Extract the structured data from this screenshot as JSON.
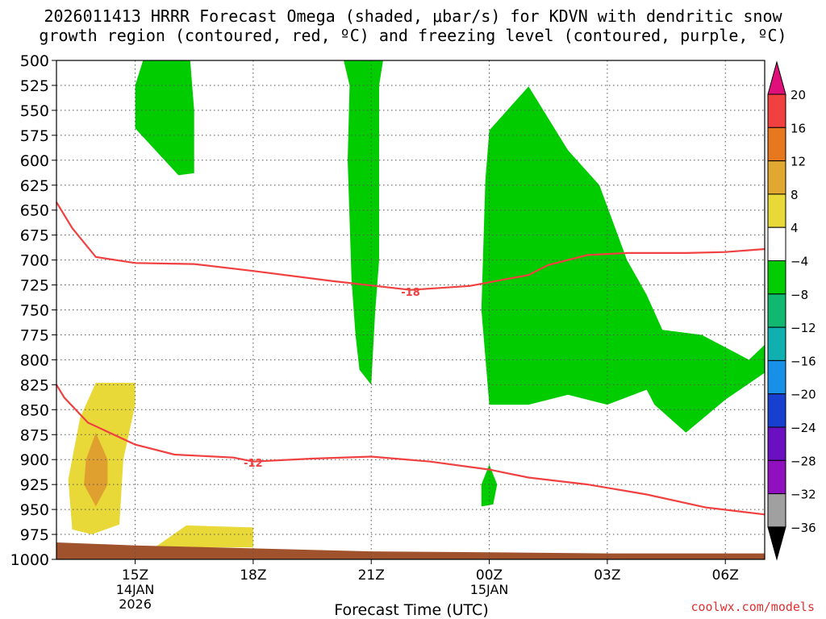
{
  "title_line1": "2026011413 HRRR Forecast Omega (shaded, μbar/s) for KDVN with dendritic snow",
  "title_line2": "growth region (contoured, red, ºC) and freezing level (contoured, purple, ºC)",
  "credit": "coolwx.com/models",
  "colors": {
    "green": "#00cc00",
    "yellow": "#e8d838",
    "orange": "#e0a030",
    "ground": "#a0522d",
    "contour_red": "#f04040"
  },
  "chart_data": {
    "type": "heatmap",
    "title": "2026011413 HRRR Forecast Omega (shaded, μbar/s) for KDVN with dendritic snow growth region (contoured, red, ºC) and freezing level (contoured, purple, ºC)",
    "xlabel": "Forecast Time (UTC)",
    "x_axis": {
      "range_hours": [
        13,
        31
      ],
      "ticks": [
        {
          "hour": 15,
          "label": "15Z",
          "sub1": "14JAN",
          "sub2": "2026"
        },
        {
          "hour": 18,
          "label": "18Z",
          "sub1": "",
          "sub2": ""
        },
        {
          "hour": 21,
          "label": "21Z",
          "sub1": "",
          "sub2": ""
        },
        {
          "hour": 24,
          "label": "00Z",
          "sub1": "15JAN",
          "sub2": ""
        },
        {
          "hour": 27,
          "label": "03Z",
          "sub1": "",
          "sub2": ""
        },
        {
          "hour": 30,
          "label": "06Z",
          "sub1": "",
          "sub2": ""
        }
      ]
    },
    "y_axis": {
      "unit": "hPa",
      "range": [
        500,
        1000
      ],
      "ticks": [
        500,
        525,
        550,
        575,
        600,
        625,
        650,
        675,
        700,
        725,
        750,
        775,
        800,
        825,
        850,
        875,
        900,
        925,
        950,
        975,
        1000
      ]
    },
    "grid": true,
    "colorbar": {
      "levels": [
        "20",
        "16",
        "12",
        "8",
        "4",
        "−4",
        "−8",
        "−12",
        "−16",
        "−20",
        "−24",
        "−28",
        "−32",
        "−36"
      ],
      "colors": [
        "#f04040",
        "#e87820",
        "#e0a830",
        "#e8d838",
        "#ffffff",
        "#00cc00",
        "#10b870",
        "#10b0b0",
        "#1890e8",
        "#1840d0",
        "#6a10c0",
        "#9010c0",
        "#a0a0a0"
      ],
      "top_arrow_color": "#e0107a",
      "bottom_arrow_color": "#000000"
    },
    "omega_regions": [
      {
        "level": "-8 to -4",
        "color": "#00cc00",
        "points": [
          [
            15.0,
            525
          ],
          [
            15.2,
            500
          ],
          [
            16.4,
            500
          ],
          [
            16.5,
            550
          ],
          [
            16.5,
            613
          ],
          [
            16.1,
            615
          ],
          [
            15.0,
            568
          ]
        ]
      },
      {
        "level": "-8 to -4",
        "color": "#00cc00",
        "points": [
          [
            20.3,
            500
          ],
          [
            21.3,
            500
          ],
          [
            21.2,
            525
          ],
          [
            21.2,
            560
          ],
          [
            21.2,
            700
          ],
          [
            21.1,
            752
          ],
          [
            21.0,
            825
          ],
          [
            20.7,
            810
          ],
          [
            20.6,
            775
          ],
          [
            20.5,
            720
          ],
          [
            20.4,
            600
          ],
          [
            20.45,
            525
          ]
        ]
      },
      {
        "level": "-8 to -4",
        "color": "#00cc00",
        "points": [
          [
            24.0,
            570
          ],
          [
            25.0,
            526
          ],
          [
            26.0,
            590
          ],
          [
            26.8,
            625
          ],
          [
            27.5,
            700
          ],
          [
            28.0,
            735
          ],
          [
            28.4,
            770
          ],
          [
            29.4,
            775
          ],
          [
            30.6,
            800
          ],
          [
            31.0,
            785
          ],
          [
            31.0,
            813
          ],
          [
            30.0,
            840
          ],
          [
            29.0,
            873
          ],
          [
            28.2,
            845
          ],
          [
            28.0,
            830
          ],
          [
            27.0,
            845
          ],
          [
            26.0,
            835
          ],
          [
            25.0,
            845
          ],
          [
            24.0,
            845
          ],
          [
            23.8,
            750
          ],
          [
            23.9,
            620
          ]
        ]
      },
      {
        "level": "-8 to -4",
        "color": "#00cc00",
        "points": [
          [
            23.8,
            925
          ],
          [
            24.0,
            905
          ],
          [
            24.2,
            925
          ],
          [
            24.1,
            945
          ],
          [
            23.8,
            947
          ]
        ]
      },
      {
        "level": "4 to 8",
        "color": "#e8d838",
        "points": [
          [
            14.0,
            823
          ],
          [
            15.0,
            823
          ],
          [
            15.0,
            845
          ],
          [
            14.7,
            900
          ],
          [
            14.6,
            965
          ],
          [
            13.9,
            975
          ],
          [
            13.4,
            970
          ],
          [
            13.3,
            920
          ],
          [
            13.6,
            858
          ]
        ]
      },
      {
        "level": "8 to 12",
        "color": "#e0a030",
        "points": [
          [
            14.0,
            873
          ],
          [
            14.3,
            900
          ],
          [
            14.3,
            925
          ],
          [
            14.0,
            947
          ],
          [
            13.7,
            925
          ],
          [
            13.75,
            900
          ]
        ]
      },
      {
        "level": "4 to 8",
        "color": "#e8d838",
        "points": [
          [
            15.5,
            988
          ],
          [
            16.3,
            966
          ],
          [
            18.0,
            968
          ],
          [
            18.0,
            988
          ]
        ]
      }
    ],
    "ground": {
      "color": "#a0522d",
      "top_hPa": [
        [
          13,
          983
        ],
        [
          15,
          986
        ],
        [
          18,
          989
        ],
        [
          21,
          992
        ],
        [
          24,
          993
        ],
        [
          27,
          994
        ],
        [
          31,
          994
        ]
      ]
    },
    "contours": [
      {
        "label": "-18",
        "color": "#f04040",
        "label_at": [
          22.0,
          732
        ],
        "points": [
          [
            13,
            642
          ],
          [
            13.4,
            668
          ],
          [
            14.0,
            697
          ],
          [
            15.0,
            703
          ],
          [
            16.5,
            704
          ],
          [
            18.0,
            711
          ],
          [
            20.0,
            721
          ],
          [
            22.0,
            730
          ],
          [
            23.5,
            726
          ],
          [
            25.0,
            715
          ],
          [
            25.5,
            705
          ],
          [
            26.5,
            695
          ],
          [
            27.5,
            693
          ],
          [
            29.0,
            693
          ],
          [
            30.0,
            692
          ],
          [
            31.0,
            689
          ]
        ]
      },
      {
        "label": "-12",
        "color": "#f04040",
        "label_at": [
          18.0,
          903
        ],
        "points": [
          [
            13,
            825
          ],
          [
            13.2,
            838
          ],
          [
            13.8,
            863
          ],
          [
            15.0,
            885
          ],
          [
            16.0,
            895
          ],
          [
            17.5,
            898
          ],
          [
            18.0,
            902
          ],
          [
            19.5,
            899
          ],
          [
            21.0,
            897
          ],
          [
            22.5,
            902
          ],
          [
            24.0,
            910
          ],
          [
            25.0,
            918
          ],
          [
            26.5,
            925
          ],
          [
            28.0,
            935
          ],
          [
            29.5,
            948
          ],
          [
            31.0,
            955
          ]
        ]
      }
    ]
  }
}
